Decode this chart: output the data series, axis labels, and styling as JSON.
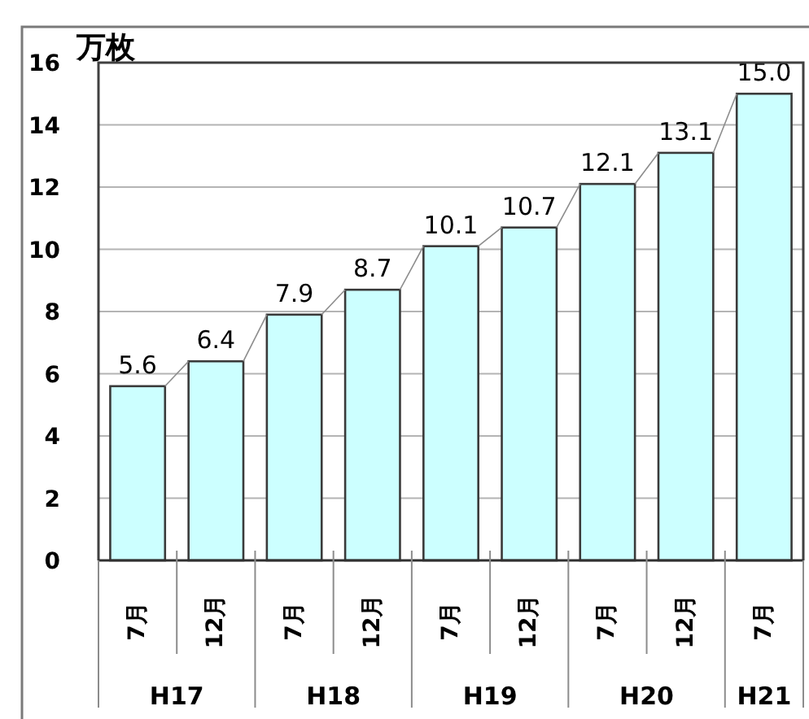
{
  "chart_data": {
    "type": "bar",
    "ylabel": "万枚",
    "categories": [
      "7月",
      "12月",
      "7月",
      "12月",
      "7月",
      "12月",
      "7月",
      "12月",
      "7月"
    ],
    "values": [
      5.6,
      6.4,
      7.9,
      8.7,
      10.1,
      10.7,
      12.1,
      13.1,
      15.0
    ],
    "value_labels": [
      "5.6",
      "6.4",
      "7.9",
      "8.7",
      "10.1",
      "10.7",
      "12.1",
      "13.1",
      "15.0"
    ],
    "color": "#ccffff",
    "ylim": [
      0,
      16
    ],
    "yticks": [
      0,
      2,
      4,
      6,
      8,
      10,
      12,
      14,
      16
    ],
    "grid": "y",
    "annotations": [
      "H17",
      "H18",
      "H19",
      "H20",
      "H21"
    ]
  }
}
